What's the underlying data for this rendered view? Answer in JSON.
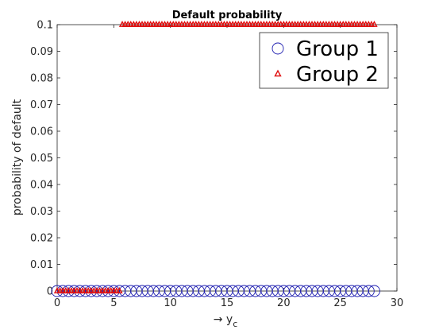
{
  "chart_data": {
    "type": "scatter",
    "title": "Default probability",
    "xlabel": "→ y",
    "xlabel_subscript": "c",
    "ylabel": "probability of default",
    "xlim": [
      0,
      30
    ],
    "ylim": [
      0,
      0.1
    ],
    "x_ticks": [
      "0",
      "5",
      "10",
      "15",
      "20",
      "25",
      "30"
    ],
    "y_ticks": [
      "0",
      "0.01",
      "0.02",
      "0.03",
      "0.04",
      "0.05",
      "0.06",
      "0.07",
      "0.08",
      "0.09",
      "0.1"
    ],
    "grid": false,
    "legend_placement": "top-right",
    "series": [
      {
        "name": "Group 1",
        "marker": "circle",
        "color": "#1f1fb0",
        "points": [
          [
            0.0,
            0
          ],
          [
            0.5,
            0
          ],
          [
            1.0,
            0
          ],
          [
            1.5,
            0
          ],
          [
            2.0,
            0
          ],
          [
            2.5,
            0
          ],
          [
            3.0,
            0
          ],
          [
            3.5,
            0
          ],
          [
            4.0,
            0
          ],
          [
            4.5,
            0
          ],
          [
            5.0,
            0
          ],
          [
            5.5,
            0
          ],
          [
            6.0,
            0
          ],
          [
            6.5,
            0
          ],
          [
            7.0,
            0
          ],
          [
            7.5,
            0
          ],
          [
            8.0,
            0
          ],
          [
            8.5,
            0
          ],
          [
            9.0,
            0
          ],
          [
            9.5,
            0
          ],
          [
            10.0,
            0
          ],
          [
            10.5,
            0
          ],
          [
            11.0,
            0
          ],
          [
            11.5,
            0
          ],
          [
            12.0,
            0
          ],
          [
            12.5,
            0
          ],
          [
            13.0,
            0
          ],
          [
            13.5,
            0
          ],
          [
            14.0,
            0
          ],
          [
            14.5,
            0
          ],
          [
            15.0,
            0
          ],
          [
            15.5,
            0
          ],
          [
            16.0,
            0
          ],
          [
            16.5,
            0
          ],
          [
            17.0,
            0
          ],
          [
            17.5,
            0
          ],
          [
            18.0,
            0
          ],
          [
            18.5,
            0
          ],
          [
            19.0,
            0
          ],
          [
            19.5,
            0
          ],
          [
            20.0,
            0
          ],
          [
            20.5,
            0
          ],
          [
            21.0,
            0
          ],
          [
            21.5,
            0
          ],
          [
            22.0,
            0
          ],
          [
            22.5,
            0
          ],
          [
            23.0,
            0
          ],
          [
            23.5,
            0
          ],
          [
            24.0,
            0
          ],
          [
            24.5,
            0
          ],
          [
            25.0,
            0
          ],
          [
            25.5,
            0
          ],
          [
            26.0,
            0
          ],
          [
            26.5,
            0
          ],
          [
            27.0,
            0
          ],
          [
            27.5,
            0
          ],
          [
            28.0,
            0
          ]
        ]
      },
      {
        "name": "Group 2",
        "marker": "triangle",
        "color": "#e01010",
        "points": [
          [
            0.0,
            0
          ],
          [
            0.25,
            0
          ],
          [
            0.5,
            0
          ],
          [
            0.75,
            0
          ],
          [
            1.0,
            0
          ],
          [
            1.25,
            0
          ],
          [
            1.5,
            0
          ],
          [
            1.75,
            0
          ],
          [
            2.0,
            0
          ],
          [
            2.25,
            0
          ],
          [
            2.5,
            0
          ],
          [
            2.75,
            0
          ],
          [
            3.0,
            0
          ],
          [
            3.25,
            0
          ],
          [
            3.5,
            0
          ],
          [
            3.75,
            0
          ],
          [
            4.0,
            0
          ],
          [
            4.25,
            0
          ],
          [
            4.5,
            0
          ],
          [
            4.75,
            0
          ],
          [
            5.0,
            0
          ],
          [
            5.25,
            0
          ],
          [
            5.5,
            0
          ],
          [
            5.75,
            0.1
          ],
          [
            6.0,
            0.1
          ],
          [
            6.25,
            0.1
          ],
          [
            6.5,
            0.1
          ],
          [
            6.75,
            0.1
          ],
          [
            7.0,
            0.1
          ],
          [
            7.25,
            0.1
          ],
          [
            7.5,
            0.1
          ],
          [
            7.75,
            0.1
          ],
          [
            8.0,
            0.1
          ],
          [
            8.25,
            0.1
          ],
          [
            8.5,
            0.1
          ],
          [
            8.75,
            0.1
          ],
          [
            9.0,
            0.1
          ],
          [
            9.25,
            0.1
          ],
          [
            9.5,
            0.1
          ],
          [
            9.75,
            0.1
          ],
          [
            10.0,
            0.1
          ],
          [
            10.25,
            0.1
          ],
          [
            10.5,
            0.1
          ],
          [
            10.75,
            0.1
          ],
          [
            11.0,
            0.1
          ],
          [
            11.25,
            0.1
          ],
          [
            11.5,
            0.1
          ],
          [
            11.75,
            0.1
          ],
          [
            12.0,
            0.1
          ],
          [
            12.25,
            0.1
          ],
          [
            12.5,
            0.1
          ],
          [
            12.75,
            0.1
          ],
          [
            13.0,
            0.1
          ],
          [
            13.25,
            0.1
          ],
          [
            13.5,
            0.1
          ],
          [
            13.75,
            0.1
          ],
          [
            14.0,
            0.1
          ],
          [
            14.25,
            0.1
          ],
          [
            14.5,
            0.1
          ],
          [
            14.75,
            0.1
          ],
          [
            15.0,
            0.1
          ],
          [
            15.25,
            0.1
          ],
          [
            15.5,
            0.1
          ],
          [
            15.75,
            0.1
          ],
          [
            16.0,
            0.1
          ],
          [
            16.25,
            0.1
          ],
          [
            16.5,
            0.1
          ],
          [
            16.75,
            0.1
          ],
          [
            17.0,
            0.1
          ],
          [
            17.25,
            0.1
          ],
          [
            17.5,
            0.1
          ],
          [
            17.75,
            0.1
          ],
          [
            18.0,
            0.1
          ],
          [
            18.25,
            0.1
          ],
          [
            18.5,
            0.1
          ],
          [
            18.75,
            0.1
          ],
          [
            19.0,
            0.1
          ],
          [
            19.25,
            0.1
          ],
          [
            19.5,
            0.1
          ],
          [
            19.75,
            0.1
          ],
          [
            20.0,
            0.1
          ],
          [
            20.25,
            0.1
          ],
          [
            20.5,
            0.1
          ],
          [
            20.75,
            0.1
          ],
          [
            21.0,
            0.1
          ],
          [
            21.25,
            0.1
          ],
          [
            21.5,
            0.1
          ],
          [
            21.75,
            0.1
          ],
          [
            22.0,
            0.1
          ],
          [
            22.25,
            0.1
          ],
          [
            22.5,
            0.1
          ],
          [
            22.75,
            0.1
          ],
          [
            23.0,
            0.1
          ],
          [
            23.25,
            0.1
          ],
          [
            23.5,
            0.1
          ],
          [
            23.75,
            0.1
          ],
          [
            24.0,
            0.1
          ],
          [
            24.25,
            0.1
          ],
          [
            24.5,
            0.1
          ],
          [
            24.75,
            0.1
          ],
          [
            25.0,
            0.1
          ],
          [
            25.25,
            0.1
          ],
          [
            25.5,
            0.1
          ],
          [
            25.75,
            0.1
          ],
          [
            26.0,
            0.1
          ],
          [
            26.25,
            0.1
          ],
          [
            26.5,
            0.1
          ],
          [
            26.75,
            0.1
          ],
          [
            27.0,
            0.1
          ],
          [
            27.25,
            0.1
          ],
          [
            27.5,
            0.1
          ],
          [
            27.75,
            0.1
          ],
          [
            28.0,
            0.1
          ]
        ]
      }
    ]
  }
}
